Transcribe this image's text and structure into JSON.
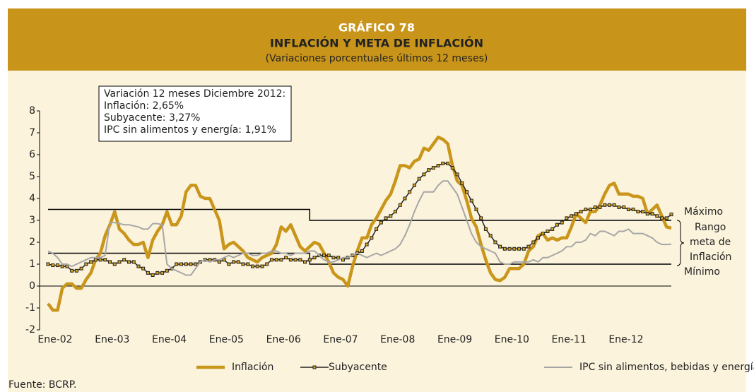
{
  "chart_data": {
    "type": "line",
    "header": "GRÁFICO 78",
    "title": "INFLACIÓN Y META DE INFLACIÓN",
    "subtitle": "(Variaciones porcentuales últimos 12 meses)",
    "annotation": [
      "Variación 12 meses Diciembre 2012:",
      "Inflación: 2,65%",
      "Subyacente: 3,27%",
      "IPC sin alimentos y energía: 1,91%"
    ],
    "range_labels": {
      "max": "Máximo",
      "range": [
        "Rango",
        "meta de",
        "Inflación"
      ],
      "min": "Mínimo"
    },
    "source": "Fuente: BCRP.",
    "ylim": [
      -2,
      8
    ],
    "yticks": [
      -2,
      -1,
      0,
      1,
      2,
      3,
      4,
      5,
      6,
      7,
      8
    ],
    "categories": [
      "Ene-02",
      null,
      null,
      null,
      null,
      null,
      null,
      null,
      null,
      null,
      null,
      null,
      "Ene-03",
      null,
      null,
      null,
      null,
      null,
      null,
      null,
      null,
      null,
      null,
      null,
      "Ene-04",
      null,
      null,
      null,
      null,
      null,
      null,
      null,
      null,
      null,
      null,
      null,
      "Ene-05",
      null,
      null,
      null,
      null,
      null,
      null,
      null,
      null,
      null,
      null,
      null,
      "Ene-06",
      null,
      null,
      null,
      null,
      null,
      null,
      null,
      null,
      null,
      null,
      null,
      "Ene-07",
      null,
      null,
      null,
      null,
      null,
      null,
      null,
      null,
      null,
      null,
      null,
      "Ene-08",
      null,
      null,
      null,
      null,
      null,
      null,
      null,
      null,
      null,
      null,
      null,
      "Ene-09",
      null,
      null,
      null,
      null,
      null,
      null,
      null,
      null,
      null,
      null,
      null,
      "Ene-10",
      null,
      null,
      null,
      null,
      null,
      null,
      null,
      null,
      null,
      null,
      null,
      "Ene-11",
      null,
      null,
      null,
      null,
      null,
      null,
      null,
      null,
      null,
      null,
      null,
      "Ene-12",
      null,
      null,
      null,
      null,
      null,
      null,
      null,
      null,
      null,
      null,
      null
    ],
    "series": [
      {
        "name": "Inflación",
        "color": "#c9961b",
        "values": [
          -0.8,
          -1.1,
          -1.1,
          -0.1,
          0.1,
          0.1,
          -0.1,
          -0.1,
          0.3,
          0.6,
          1.2,
          1.5,
          2.3,
          2.8,
          3.4,
          2.6,
          2.4,
          2.1,
          1.9,
          1.9,
          2.0,
          1.3,
          2.1,
          2.5,
          2.8,
          3.4,
          2.8,
          2.8,
          3.2,
          4.3,
          4.6,
          4.6,
          4.1,
          4.0,
          4.0,
          3.5,
          3.0,
          1.7,
          1.9,
          2.0,
          1.8,
          1.6,
          1.3,
          1.2,
          1.1,
          1.3,
          1.4,
          1.5,
          1.9,
          2.7,
          2.5,
          2.8,
          2.3,
          1.8,
          1.6,
          1.8,
          2.0,
          1.9,
          1.5,
          1.1,
          0.6,
          0.4,
          0.3,
          0.0,
          0.9,
          1.6,
          2.2,
          2.2,
          2.8,
          3.1,
          3.5,
          3.9,
          4.2,
          4.8,
          5.5,
          5.5,
          5.4,
          5.7,
          5.8,
          6.3,
          6.2,
          6.5,
          6.8,
          6.7,
          6.5,
          5.5,
          4.8,
          4.6,
          3.9,
          3.1,
          2.7,
          1.9,
          1.2,
          0.6,
          0.3,
          0.25,
          0.4,
          0.8,
          0.8,
          0.8,
          1.0,
          1.6,
          1.8,
          2.3,
          2.4,
          2.1,
          2.2,
          2.1,
          2.2,
          2.2,
          2.7,
          3.3,
          3.1,
          2.9,
          3.4,
          3.4,
          3.7,
          4.2,
          4.6,
          4.7,
          4.2,
          4.2,
          4.2,
          4.1,
          4.1,
          4.0,
          3.3,
          3.5,
          3.7,
          3.2,
          2.7,
          2.65
        ]
      },
      {
        "name": "Subyacente",
        "color": "#222222",
        "marker": "#d9a520",
        "values": [
          1.0,
          0.95,
          0.95,
          0.9,
          0.9,
          0.7,
          0.7,
          0.8,
          1.0,
          1.1,
          1.2,
          1.2,
          1.2,
          1.1,
          1.0,
          1.1,
          1.2,
          1.1,
          1.1,
          0.9,
          0.8,
          0.6,
          0.5,
          0.6,
          0.6,
          0.7,
          0.8,
          1.0,
          1.0,
          1.0,
          1.0,
          1.0,
          1.1,
          1.2,
          1.2,
          1.2,
          1.1,
          1.2,
          1.0,
          1.1,
          1.1,
          1.0,
          1.0,
          0.9,
          0.9,
          0.9,
          1.0,
          1.2,
          1.2,
          1.2,
          1.3,
          1.2,
          1.2,
          1.2,
          1.1,
          1.2,
          1.3,
          1.4,
          1.4,
          1.4,
          1.3,
          1.3,
          1.2,
          1.3,
          1.4,
          1.5,
          1.6,
          1.9,
          2.2,
          2.6,
          2.9,
          3.1,
          3.2,
          3.4,
          3.7,
          4.0,
          4.3,
          4.6,
          4.9,
          5.1,
          5.3,
          5.4,
          5.5,
          5.6,
          5.6,
          5.4,
          5.1,
          4.7,
          4.3,
          3.9,
          3.5,
          3.1,
          2.6,
          2.3,
          2.0,
          1.8,
          1.7,
          1.7,
          1.7,
          1.7,
          1.7,
          1.8,
          2.0,
          2.2,
          2.4,
          2.5,
          2.6,
          2.8,
          2.9,
          3.1,
          3.2,
          3.3,
          3.4,
          3.5,
          3.5,
          3.6,
          3.6,
          3.7,
          3.7,
          3.7,
          3.6,
          3.6,
          3.5,
          3.5,
          3.4,
          3.4,
          3.3,
          3.3,
          3.2,
          3.1,
          3.1,
          3.27
        ]
      },
      {
        "name": "IPC sin alimentos, bebidas y energía",
        "color": "#a6a6a6",
        "values": [
          1.6,
          1.5,
          1.3,
          1.0,
          1.0,
          0.9,
          1.0,
          1.1,
          1.2,
          1.3,
          1.3,
          1.3,
          1.4,
          2.9,
          2.9,
          2.85,
          2.8,
          2.8,
          2.75,
          2.7,
          2.6,
          2.6,
          2.85,
          2.85,
          2.8,
          1.0,
          0.8,
          0.7,
          0.6,
          0.5,
          0.5,
          0.8,
          1.1,
          1.2,
          1.1,
          1.2,
          1.2,
          1.3,
          1.4,
          1.3,
          1.4,
          1.5,
          1.5,
          1.4,
          1.4,
          1.5,
          1.5,
          1.6,
          1.6,
          1.5,
          1.5,
          1.4,
          1.5,
          1.5,
          1.5,
          1.6,
          1.6,
          1.4,
          1.2,
          1.1,
          1.1,
          1.2,
          1.3,
          1.3,
          1.4,
          1.5,
          1.4,
          1.3,
          1.4,
          1.5,
          1.4,
          1.5,
          1.6,
          1.7,
          1.9,
          2.3,
          2.8,
          3.4,
          3.9,
          4.3,
          4.3,
          4.3,
          4.6,
          4.8,
          4.8,
          4.5,
          4.2,
          3.6,
          3.0,
          2.4,
          2.0,
          1.8,
          1.7,
          1.6,
          1.5,
          1.1,
          1.0,
          1.0,
          1.1,
          1.1,
          1.1,
          1.1,
          1.2,
          1.1,
          1.3,
          1.3,
          1.4,
          1.5,
          1.6,
          1.8,
          1.8,
          2.0,
          2.0,
          2.1,
          2.4,
          2.3,
          2.5,
          2.5,
          2.4,
          2.3,
          2.5,
          2.5,
          2.6,
          2.4,
          2.4,
          2.4,
          2.3,
          2.2,
          2.0,
          1.9,
          1.9,
          1.91
        ]
      }
    ],
    "target": {
      "color": "#000000",
      "upper": [
        3.5,
        3.5,
        3.5,
        3.5,
        3.5,
        3.5,
        3.5,
        3.5,
        3.5,
        3.5,
        3.5,
        3.5,
        3.5,
        3.5,
        3.5,
        3.5,
        3.5,
        3.5,
        3.5,
        3.5,
        3.5,
        3.5,
        3.5,
        3.5,
        3.5,
        3.5,
        3.5,
        3.5,
        3.5,
        3.5,
        3.5,
        3.5,
        3.5,
        3.5,
        3.5,
        3.5,
        3.5,
        3.5,
        3.5,
        3.5,
        3.5,
        3.5,
        3.5,
        3.5,
        3.5,
        3.5,
        3.5,
        3.5,
        3.5,
        3.5,
        3.5,
        3.5,
        3.5,
        3.5,
        3.5,
        3,
        3,
        3,
        3,
        3,
        3,
        3,
        3,
        3,
        3,
        3,
        3,
        3,
        3,
        3,
        3,
        3,
        3,
        3,
        3,
        3,
        3,
        3,
        3,
        3,
        3,
        3,
        3,
        3,
        3,
        3,
        3,
        3,
        3,
        3,
        3,
        3,
        3,
        3,
        3,
        3,
        3,
        3,
        3,
        3,
        3,
        3,
        3,
        3,
        3,
        3,
        3,
        3,
        3,
        3,
        3,
        3,
        3,
        3,
        3,
        3,
        3,
        3,
        3,
        3,
        3,
        3,
        3,
        3,
        3,
        3,
        3,
        3,
        3,
        3,
        3,
        3
      ],
      "lower": [
        1.5,
        1.5,
        1.5,
        1.5,
        1.5,
        1.5,
        1.5,
        1.5,
        1.5,
        1.5,
        1.5,
        1.5,
        1.5,
        1.5,
        1.5,
        1.5,
        1.5,
        1.5,
        1.5,
        1.5,
        1.5,
        1.5,
        1.5,
        1.5,
        1.5,
        1.5,
        1.5,
        1.5,
        1.5,
        1.5,
        1.5,
        1.5,
        1.5,
        1.5,
        1.5,
        1.5,
        1.5,
        1.5,
        1.5,
        1.5,
        1.5,
        1.5,
        1.5,
        1.5,
        1.5,
        1.5,
        1.5,
        1.5,
        1.5,
        1.5,
        1.5,
        1.5,
        1.5,
        1.5,
        1.5,
        1,
        1,
        1,
        1,
        1,
        1,
        1,
        1,
        1,
        1,
        1,
        1,
        1,
        1,
        1,
        1,
        1,
        1,
        1,
        1,
        1,
        1,
        1,
        1,
        1,
        1,
        1,
        1,
        1,
        1,
        1,
        1,
        1,
        1,
        1,
        1,
        1,
        1,
        1,
        1,
        1,
        1,
        1,
        1,
        1,
        1,
        1,
        1,
        1,
        1,
        1,
        1,
        1,
        1,
        1,
        1,
        1,
        1,
        1,
        1,
        1,
        1,
        1,
        1,
        1,
        1,
        1,
        1,
        1,
        1,
        1,
        1,
        1,
        1,
        1,
        1,
        1
      ]
    }
  }
}
